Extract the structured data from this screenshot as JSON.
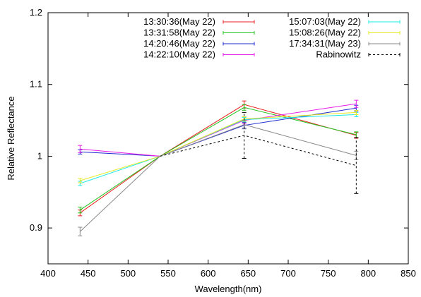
{
  "chart_data": {
    "type": "line",
    "title": "",
    "xlabel": "Wavelength(nm)",
    "ylabel": "Relative Reflectance",
    "xlim": [
      400,
      850
    ],
    "ylim": [
      0.85,
      1.2
    ],
    "xticks": [
      400,
      450,
      500,
      550,
      600,
      650,
      700,
      750,
      800,
      850
    ],
    "yticks": [
      0.9,
      1,
      1.1,
      1.2
    ],
    "ytick_labels": [
      "0.9",
      "1",
      "1.1",
      "1.2"
    ],
    "grid": false,
    "legend_position": "top-right",
    "x": [
      440,
      540,
      645,
      785
    ],
    "series": [
      {
        "name": "13:30:36(May 22)",
        "color": "#e8201e",
        "dash": "solid",
        "values": [
          0.921,
          1.0,
          1.072,
          1.029
        ],
        "errors": [
          0.004,
          0.0,
          0.005,
          0.004
        ]
      },
      {
        "name": "13:31:58(May 22)",
        "color": "#22c41e",
        "dash": "solid",
        "values": [
          0.925,
          1.0,
          1.068,
          1.03
        ],
        "errors": [
          0.004,
          0.0,
          0.004,
          0.004
        ]
      },
      {
        "name": "14:20:46(May 22)",
        "color": "#1e2ad0",
        "dash": "solid",
        "values": [
          1.006,
          1.0,
          1.043,
          1.067
        ],
        "errors": [
          0.003,
          0.0,
          0.004,
          0.004
        ]
      },
      {
        "name": "14:22:10(May 22)",
        "color": "#e81ee8",
        "dash": "solid",
        "values": [
          1.01,
          1.0,
          1.05,
          1.073
        ],
        "errors": [
          0.005,
          0.0,
          0.005,
          0.005
        ]
      },
      {
        "name": "15:07:03(May 22)",
        "color": "#1ee8e8",
        "dash": "solid",
        "values": [
          0.962,
          1.0,
          1.051,
          1.058
        ],
        "errors": [
          0.003,
          0.0,
          0.003,
          0.003
        ]
      },
      {
        "name": "15:08:26(May 22)",
        "color": "#e8e81e",
        "dash": "solid",
        "values": [
          0.966,
          1.0,
          1.052,
          1.061
        ],
        "errors": [
          0.003,
          0.0,
          0.003,
          0.003
        ]
      },
      {
        "name": "17:34:31(May 23)",
        "color": "#888888",
        "dash": "solid",
        "values": [
          0.895,
          1.0,
          1.044,
          1.001
        ],
        "errors": [
          0.006,
          0.0,
          0.006,
          0.006
        ]
      },
      {
        "name": "Rabinowitz",
        "color": "#000000",
        "dash": "dashed",
        "values": [
          null,
          1.0,
          1.029,
          0.987
        ],
        "errors": [
          0,
          0.0,
          0.032,
          0.039
        ]
      }
    ]
  }
}
